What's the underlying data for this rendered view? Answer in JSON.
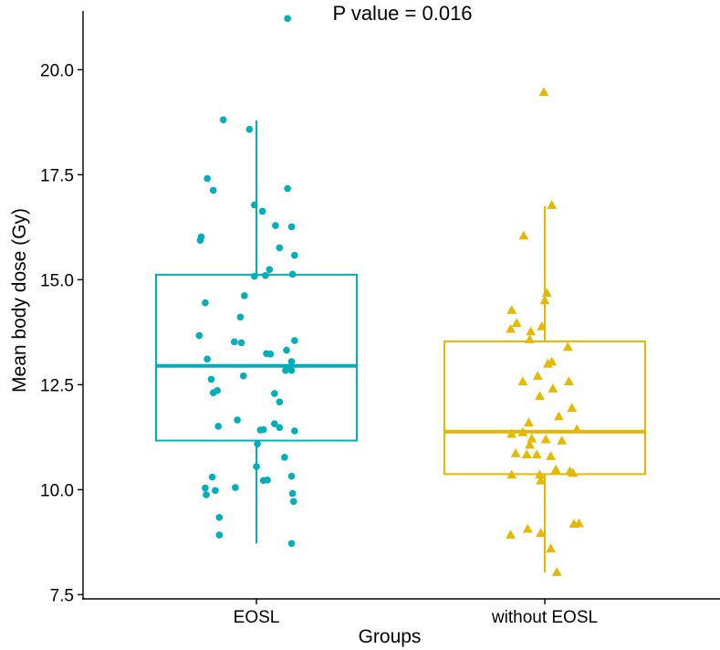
{
  "chart_data": {
    "type": "box",
    "title": "P value = 0.016",
    "xlabel": "Groups",
    "ylabel": "Mean body dose (Gy)",
    "ylim": [
      7.4,
      21.4
    ],
    "yticks": [
      7.5,
      10.0,
      12.5,
      15.0,
      17.5,
      20.0
    ],
    "ytick_labels": [
      "7.5",
      "10.0",
      "12.5",
      "15.0",
      "17.5",
      "20.0"
    ],
    "categories": [
      "EOSL",
      "without EOSL"
    ],
    "groups": [
      {
        "name": "EOSL",
        "color": "#00AFBB",
        "marker": "circle",
        "box": {
          "whisker_low": 8.72,
          "q1": 11.17,
          "median": 12.95,
          "q3": 15.12,
          "whisker_high": 18.79
        },
        "points": [
          {
            "j": 0.31,
            "y": 21.22
          },
          {
            "j": -0.33,
            "y": 18.81
          },
          {
            "j": -0.07,
            "y": 18.58
          },
          {
            "j": -0.49,
            "y": 17.41
          },
          {
            "j": -0.43,
            "y": 17.13
          },
          {
            "j": 0.31,
            "y": 17.17
          },
          {
            "j": -0.02,
            "y": 16.78
          },
          {
            "j": 0.06,
            "y": 16.63
          },
          {
            "j": 0.19,
            "y": 16.29
          },
          {
            "j": 0.35,
            "y": 16.26
          },
          {
            "j": 0.23,
            "y": 15.76
          },
          {
            "j": -0.55,
            "y": 16.02
          },
          {
            "j": -0.56,
            "y": 15.94
          },
          {
            "j": 0.38,
            "y": 15.58
          },
          {
            "j": 0.13,
            "y": 15.24
          },
          {
            "j": 0.36,
            "y": 15.13
          },
          {
            "j": -0.02,
            "y": 15.08
          },
          {
            "j": 0.09,
            "y": 15.1
          },
          {
            "j": -0.12,
            "y": 14.62
          },
          {
            "j": -0.51,
            "y": 14.45
          },
          {
            "j": -0.16,
            "y": 14.11
          },
          {
            "j": -0.57,
            "y": 13.67
          },
          {
            "j": 0.38,
            "y": 13.55
          },
          {
            "j": -0.22,
            "y": 13.52
          },
          {
            "j": -0.15,
            "y": 13.5
          },
          {
            "j": 0.3,
            "y": 13.32
          },
          {
            "j": 0.1,
            "y": 13.24
          },
          {
            "j": 0.14,
            "y": 13.23
          },
          {
            "j": -0.49,
            "y": 13.11
          },
          {
            "j": 0.35,
            "y": 13.05
          },
          {
            "j": 0.32,
            "y": 12.91
          },
          {
            "j": 0.29,
            "y": 12.84
          },
          {
            "j": 0.35,
            "y": 12.84
          },
          {
            "j": -0.13,
            "y": 12.71
          },
          {
            "j": -0.45,
            "y": 12.63
          },
          {
            "j": -0.39,
            "y": 12.36
          },
          {
            "j": -0.43,
            "y": 12.31
          },
          {
            "j": 0.18,
            "y": 12.29
          },
          {
            "j": 0.23,
            "y": 12.09
          },
          {
            "j": -0.19,
            "y": 11.66
          },
          {
            "j": -0.38,
            "y": 11.51
          },
          {
            "j": 0.18,
            "y": 11.57
          },
          {
            "j": 0.23,
            "y": 11.48
          },
          {
            "j": 0.07,
            "y": 11.43
          },
          {
            "j": 0.04,
            "y": 11.42
          },
          {
            "j": 0.38,
            "y": 11.4
          },
          {
            "j": 0.01,
            "y": 11.09
          },
          {
            "j": 0.28,
            "y": 10.77
          },
          {
            "j": 0.0,
            "y": 10.55
          },
          {
            "j": 0.35,
            "y": 10.32
          },
          {
            "j": -0.44,
            "y": 10.3
          },
          {
            "j": 0.11,
            "y": 10.23
          },
          {
            "j": 0.07,
            "y": 10.22
          },
          {
            "j": -0.21,
            "y": 10.05
          },
          {
            "j": -0.51,
            "y": 10.04
          },
          {
            "j": -0.41,
            "y": 9.98
          },
          {
            "j": -0.5,
            "y": 9.88
          },
          {
            "j": 0.36,
            "y": 9.91
          },
          {
            "j": 0.37,
            "y": 9.72
          },
          {
            "j": -0.37,
            "y": 9.34
          },
          {
            "j": -0.37,
            "y": 8.92
          },
          {
            "j": 0.35,
            "y": 8.72
          }
        ]
      },
      {
        "name": "without EOSL",
        "color": "#E7B800",
        "marker": "triangle",
        "box": {
          "whisker_low": 8.03,
          "q1": 10.37,
          "median": 11.38,
          "q3": 13.53,
          "whisker_high": 16.75
        },
        "points": [
          {
            "j": -0.01,
            "y": 19.47
          },
          {
            "j": 0.07,
            "y": 16.78
          },
          {
            "j": -0.21,
            "y": 16.05
          },
          {
            "j": 0.02,
            "y": 14.69
          },
          {
            "j": 0.0,
            "y": 14.51
          },
          {
            "j": -0.33,
            "y": 14.28
          },
          {
            "j": -0.28,
            "y": 13.97
          },
          {
            "j": -0.34,
            "y": 13.83
          },
          {
            "j": -0.14,
            "y": 13.77
          },
          {
            "j": -0.03,
            "y": 13.89
          },
          {
            "j": -0.15,
            "y": 13.58
          },
          {
            "j": 0.23,
            "y": 13.4
          },
          {
            "j": 0.07,
            "y": 13.05
          },
          {
            "j": 0.03,
            "y": 13.0
          },
          {
            "j": -0.07,
            "y": 12.71
          },
          {
            "j": 0.24,
            "y": 12.58
          },
          {
            "j": 0.08,
            "y": 12.41
          },
          {
            "j": -0.22,
            "y": 12.58
          },
          {
            "j": -0.05,
            "y": 12.23
          },
          {
            "j": 0.27,
            "y": 11.95
          },
          {
            "j": 0.14,
            "y": 11.75
          },
          {
            "j": -0.16,
            "y": 11.6
          },
          {
            "j": 0.32,
            "y": 11.44
          },
          {
            "j": -0.33,
            "y": 11.33
          },
          {
            "j": -0.22,
            "y": 11.37
          },
          {
            "j": -0.13,
            "y": 11.22
          },
          {
            "j": 0.01,
            "y": 11.2
          },
          {
            "j": 0.17,
            "y": 11.17
          },
          {
            "j": -0.15,
            "y": 11.07
          },
          {
            "j": -0.29,
            "y": 10.87
          },
          {
            "j": 0.06,
            "y": 10.8
          },
          {
            "j": -0.18,
            "y": 10.84
          },
          {
            "j": -0.08,
            "y": 10.84
          },
          {
            "j": 0.11,
            "y": 10.48
          },
          {
            "j": 0.25,
            "y": 10.44
          },
          {
            "j": 0.28,
            "y": 10.4
          },
          {
            "j": -0.33,
            "y": 10.36
          },
          {
            "j": -0.05,
            "y": 10.36
          },
          {
            "j": -0.04,
            "y": 10.22
          },
          {
            "j": 0.29,
            "y": 9.19
          },
          {
            "j": 0.34,
            "y": 9.2
          },
          {
            "j": -0.17,
            "y": 9.07
          },
          {
            "j": -0.04,
            "y": 8.97
          },
          {
            "j": -0.34,
            "y": 8.93
          },
          {
            "j": 0.06,
            "y": 8.6
          },
          {
            "j": 0.12,
            "y": 8.04
          }
        ]
      }
    ]
  }
}
